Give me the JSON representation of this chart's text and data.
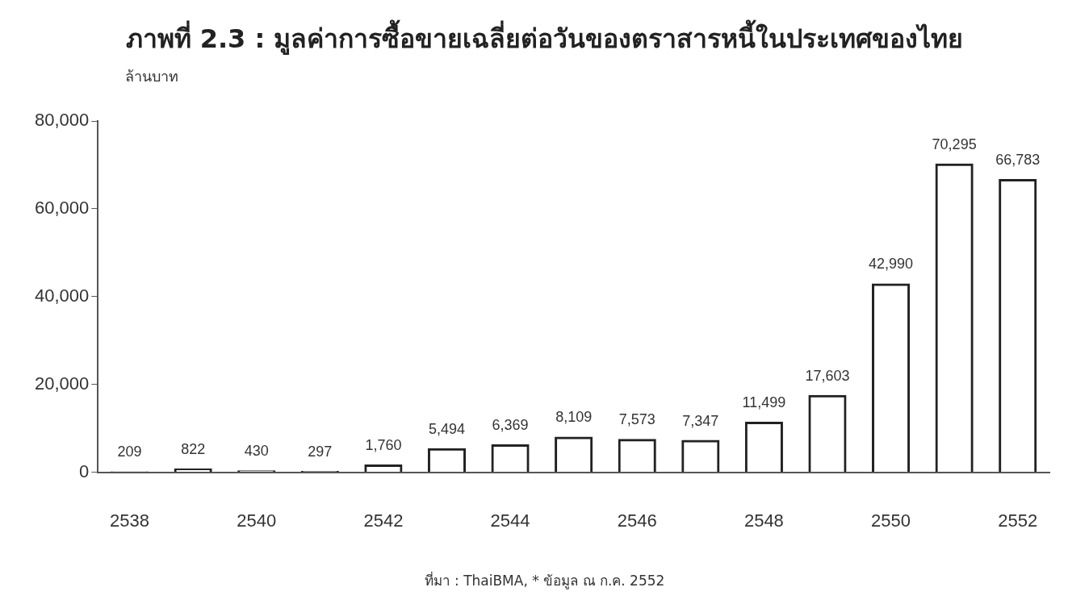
{
  "chart_data": {
    "type": "bar",
    "title": "ภาพที่ 2.3 : มูลค่าการซื้อขายเฉลี่ยต่อวันของตราสารหนี้ในประเทศของไทย",
    "ylabel": "ล้านบาท",
    "categories": [
      "2538",
      null,
      "2540",
      null,
      "2542",
      null,
      "2544",
      null,
      "2546",
      null,
      "2548",
      null,
      "2550",
      null,
      "2552"
    ],
    "values": [
      209,
      822,
      430,
      297,
      1760,
      5494,
      6369,
      8109,
      7573,
      7347,
      11499,
      17603,
      42990,
      70295,
      66783
    ],
    "value_labels": [
      "209",
      "822",
      "430",
      "297",
      "1,760",
      "5,494",
      "6,369",
      "8,109",
      "7,573",
      "7,347",
      "11,499",
      "17,603",
      "42,990",
      "70,295",
      "66,783"
    ],
    "color": "#222222",
    "ylim": [
      0,
      80000
    ],
    "yticks": [
      {
        "value": 0,
        "label": "0"
      },
      {
        "value": 20000,
        "label": "20,000"
      },
      {
        "value": 40000,
        "label": "40,000"
      },
      {
        "value": 60000,
        "label": "60,000"
      },
      {
        "value": 80000,
        "label": "80,000"
      }
    ],
    "grid": false,
    "annotations": [
      "ที่มา : ThaiBMA,  * ข้อมูล ณ ก.ค. 2552"
    ]
  }
}
